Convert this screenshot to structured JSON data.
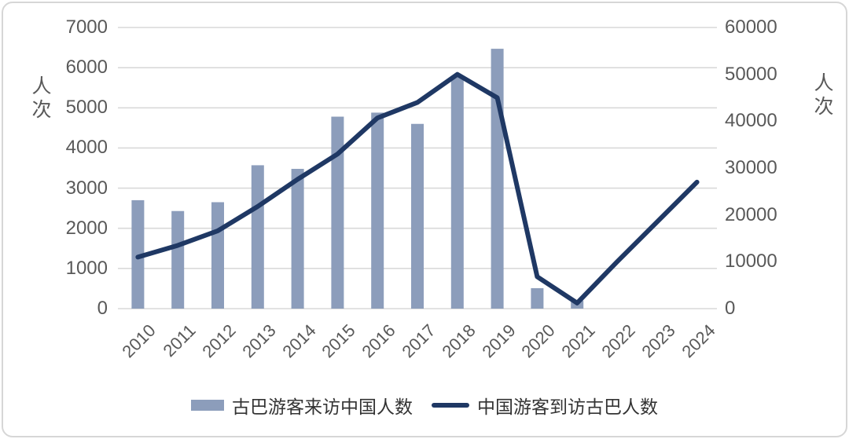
{
  "chart_data": {
    "type": "combo",
    "title": "",
    "categories": [
      "2010",
      "2011",
      "2012",
      "2013",
      "2014",
      "2015",
      "2016",
      "2017",
      "2018",
      "2019",
      "2020",
      "2021",
      "2022",
      "2023",
      "2024"
    ],
    "series": [
      {
        "name": "古巴游客来访中国人数",
        "type": "bar",
        "axis": "left",
        "color": "#8C9DBB",
        "values": [
          2700,
          2430,
          2650,
          3570,
          3480,
          4780,
          4880,
          4600,
          5800,
          6470,
          510,
          200,
          null,
          null,
          null
        ]
      },
      {
        "name": "中国游客到访古巴人数",
        "type": "line",
        "axis": "right",
        "color": "#1F3864",
        "values": [
          11000,
          13500,
          16600,
          21800,
          27600,
          33000,
          40700,
          44000,
          50000,
          45000,
          6800,
          1200,
          10000,
          18500,
          27000
        ]
      }
    ],
    "left_axis": {
      "title": "人次",
      "min": 0,
      "max": 7000,
      "ticks": [
        "0",
        "1000",
        "2000",
        "3000",
        "4000",
        "5000",
        "6000",
        "7000"
      ]
    },
    "right_axis": {
      "title": "人次",
      "min": 0,
      "max": 60000,
      "ticks": [
        "0",
        "10000",
        "20000",
        "30000",
        "40000",
        "50000",
        "60000"
      ]
    },
    "grid": true,
    "legend_position": "bottom",
    "colors": {
      "gridline": "#D9D9D9",
      "tick_text": "#595959",
      "legend_text": "#333333",
      "background": "#FFFFFF",
      "border": "#D6D6D6"
    }
  }
}
